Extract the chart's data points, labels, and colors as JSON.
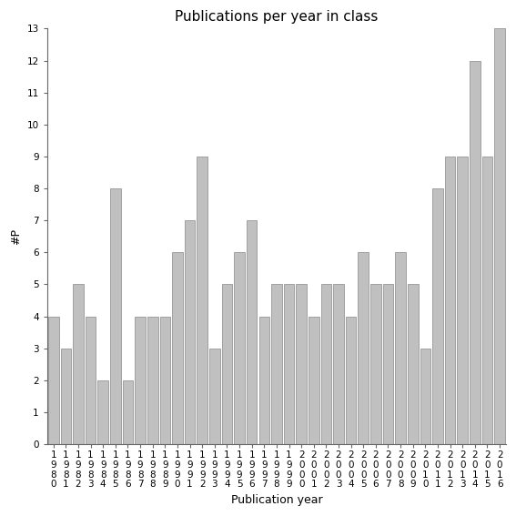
{
  "title": "Publications per year in class",
  "xlabel": "Publication year",
  "ylabel": "#P",
  "years": [
    "1980",
    "1981",
    "1982",
    "1983",
    "1984",
    "1985",
    "1986",
    "1987",
    "1988",
    "1989",
    "1990",
    "1991",
    "1992",
    "1993",
    "1994",
    "1995",
    "1996",
    "1997",
    "1998",
    "1999",
    "2000",
    "2001",
    "2002",
    "2003",
    "2004",
    "2005",
    "2006",
    "2007",
    "2008",
    "2009",
    "2010",
    "2011",
    "2012",
    "2013",
    "2014",
    "2015",
    "2016"
  ],
  "values": [
    4,
    3,
    5,
    4,
    2,
    8,
    2,
    4,
    4,
    4,
    6,
    7,
    9,
    3,
    5,
    6,
    7,
    4,
    5,
    5,
    5,
    4,
    5,
    5,
    4,
    6,
    5,
    5,
    6,
    5,
    3,
    8,
    9,
    9,
    12,
    9,
    13
  ],
  "bar_color": "#c0c0c0",
  "bar_edgecolor": "#888888",
  "ylim": [
    0,
    13
  ],
  "yticks": [
    0,
    1,
    2,
    3,
    4,
    5,
    6,
    7,
    8,
    9,
    10,
    11,
    12,
    13
  ],
  "background_color": "#ffffff",
  "title_fontsize": 11,
  "label_fontsize": 9,
  "tick_fontsize": 7.5
}
